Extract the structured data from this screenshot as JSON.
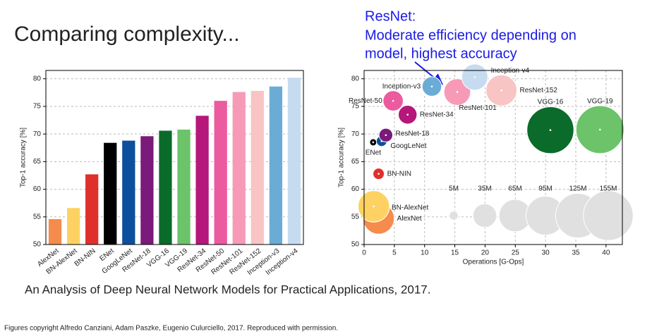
{
  "title": "Comparing complexity...",
  "annotation": [
    "ResNet:",
    "Moderate efficiency depending on",
    "model, highest accuracy"
  ],
  "citation": "An Analysis of Deep Neural Network Models for Practical Applications, 2017.",
  "copyright": "Figures copyright Alfredo Canziani, Adam Paszke, Eugenio Culurciello, 2017. Reproduced with permission.",
  "chart_data": [
    {
      "type": "bar",
      "y_label": "Top-1 accuracy [%]",
      "categories": [
        "AlexNet",
        "BN-AlexNet",
        "BN-NIN",
        "ENet",
        "GoogLeNet",
        "ResNet-18",
        "VGG-16",
        "VGG-19",
        "ResNet-34",
        "ResNet-50",
        "ResNet-101",
        "ResNet-152",
        "Inception-v3",
        "Inception-v4"
      ],
      "values": [
        54.6,
        56.6,
        62.7,
        68.4,
        68.8,
        69.6,
        70.6,
        70.8,
        73.3,
        76.0,
        77.6,
        77.8,
        78.6,
        80.2
      ],
      "colors": [
        "#f58b4c",
        "#fdd262",
        "#e0302b",
        "#000000",
        "#0c4f9c",
        "#7a1a7a",
        "#0b6b2a",
        "#6cc36a",
        "#b5177b",
        "#ec5a9f",
        "#f79ab8",
        "#f9c4c4",
        "#6aacd6",
        "#c6dbef"
      ],
      "ylim": [
        50,
        81.5
      ],
      "yticks": [
        50,
        55,
        60,
        65,
        70,
        75,
        80
      ],
      "grid": true
    },
    {
      "type": "bubble",
      "x_label": "Operations [G-Ops]",
      "y_label": "Top-1 accuracy [%]",
      "points": [
        {
          "name": "AlexNet",
          "x": 2.4,
          "y": 54.7,
          "size": 61,
          "color": "#f58b4c"
        },
        {
          "name": "BN-AlexNet",
          "x": 1.6,
          "y": 56.9,
          "size": 62,
          "color": "#fdd262"
        },
        {
          "name": "BN-NIN",
          "x": 2.4,
          "y": 62.8,
          "size": 8,
          "color": "#e0302b"
        },
        {
          "name": "ENet",
          "x": 1.5,
          "y": 68.5,
          "size": 0.4,
          "color": "#000000"
        },
        {
          "name": "GoogLeNet",
          "x": 2.9,
          "y": 68.7,
          "size": 7,
          "color": "#0c4f9c"
        },
        {
          "name": "ResNet-18",
          "x": 3.6,
          "y": 69.8,
          "size": 11.7,
          "color": "#7a1a7a"
        },
        {
          "name": "ResNet-34",
          "x": 7.2,
          "y": 73.5,
          "size": 21.8,
          "color": "#b5177b"
        },
        {
          "name": "ResNet-50",
          "x": 4.8,
          "y": 76.0,
          "size": 25.6,
          "color": "#ec5a9f"
        },
        {
          "name": "Inception-v3",
          "x": 11.2,
          "y": 78.6,
          "size": 23.8,
          "color": "#6aacd6"
        },
        {
          "name": "ResNet-101",
          "x": 15.4,
          "y": 77.6,
          "size": 44.5,
          "color": "#f79ab8"
        },
        {
          "name": "Inception-v4",
          "x": 18.3,
          "y": 80.3,
          "size": 42.7,
          "color": "#c6dbef"
        },
        {
          "name": "ResNet-152",
          "x": 22.7,
          "y": 77.9,
          "size": 60.2,
          "color": "#f9c4c4"
        },
        {
          "name": "VGG-16",
          "x": 30.8,
          "y": 70.7,
          "size": 138,
          "color": "#0b6b2a"
        },
        {
          "name": "VGG-19",
          "x": 39.0,
          "y": 70.8,
          "size": 144,
          "color": "#6cc36a"
        }
      ],
      "size_legend": [
        {
          "value": 5,
          "label": "5M"
        },
        {
          "value": 35,
          "label": "35M"
        },
        {
          "value": 65,
          "label": "65M"
        },
        {
          "value": 95,
          "label": "95M"
        },
        {
          "value": 125,
          "label": "125M"
        },
        {
          "value": 155,
          "label": "155M"
        }
      ],
      "size_legend_color": "#e0e0e0",
      "xlim": [
        0,
        42.7
      ],
      "xticks": [
        0,
        5,
        10,
        15,
        20,
        25,
        30,
        35,
        40
      ],
      "ylim": [
        50,
        81.5
      ],
      "yticks": [
        50,
        55,
        60,
        65,
        70,
        75,
        80
      ],
      "grid": true
    }
  ]
}
